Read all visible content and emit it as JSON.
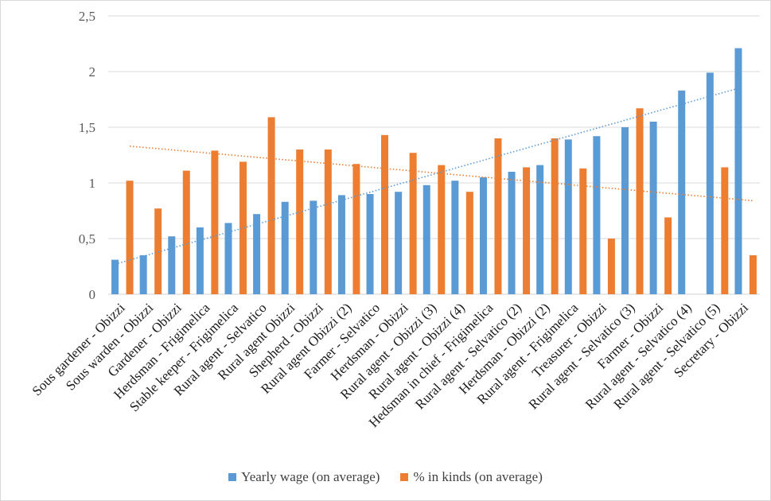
{
  "chart_data": {
    "type": "bar",
    "categories": [
      "Sous gardener - Obizzi",
      "Sous warden - Obizzi",
      "Gardener - Obizzi",
      "Herdsman - Frigimelica",
      "Stable keeper - Frigimelica",
      "Rural agent - Selvatico",
      "Rural agent Obizzi",
      "Shepherd - Obizzi",
      "Rural agent Obizzi (2)",
      "Farmer - Selvatico",
      "Herdsman - Obizzi",
      "Rural agent - Obizzi (3)",
      "Rural agent - Obizzi (4)",
      "Hedsman in chief - Frigimelica",
      "Rural agent - Selvatico (2)",
      "Herdsman - Obizzi (2)",
      "Rural agent - Frigimelica",
      "Treasurer - Obizzi",
      "Rural agent - Selvatico (3)",
      "Farmer - Obizzi",
      "Rural agent - Selvatico (4)",
      "Rural agent - Selvatico (5)",
      "Secretary - Obizzi"
    ],
    "series": [
      {
        "name": "Yearly wage (on average)",
        "color": "#5b9bd5",
        "values": [
          0.31,
          0.35,
          0.52,
          0.6,
          0.64,
          0.72,
          0.83,
          0.84,
          0.89,
          0.9,
          0.92,
          0.98,
          1.02,
          1.05,
          1.1,
          1.16,
          1.39,
          1.42,
          1.5,
          1.55,
          1.83,
          1.99,
          2.21
        ]
      },
      {
        "name": "% in kinds (on average)",
        "color": "#ed7d31",
        "values": [
          1.02,
          0.77,
          1.11,
          1.29,
          1.19,
          1.59,
          1.3,
          1.3,
          1.17,
          1.43,
          1.27,
          1.16,
          0.92,
          1.4,
          1.14,
          1.4,
          1.13,
          0.5,
          1.67,
          0.69,
          0.0,
          1.14,
          0.35
        ]
      }
    ],
    "trendlines": [
      {
        "series": 0,
        "type": "linear",
        "style": "dotted",
        "color": "#5b9bd5",
        "start": 0.27,
        "end": 1.85
      },
      {
        "series": 1,
        "type": "linear",
        "style": "dotted",
        "color": "#ed7d31",
        "start": 1.33,
        "end": 0.84
      }
    ],
    "ylim": [
      0,
      2.5
    ],
    "yticks": [
      "0",
      "0,5",
      "1",
      "1,5",
      "2",
      "2,5"
    ],
    "ytick_values": [
      0,
      0.5,
      1,
      1.5,
      2,
      2.5
    ],
    "grid": true,
    "legend_position": "bottom",
    "title": "",
    "xlabel": "",
    "ylabel": ""
  }
}
